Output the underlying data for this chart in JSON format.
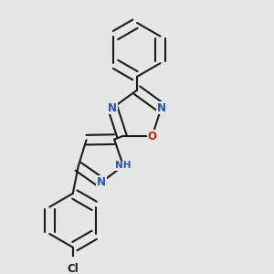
{
  "background_color": "#e6e6e6",
  "bond_color": "#1a1a1a",
  "bond_width": 1.5,
  "atom_colors": {
    "N": "#2255bb",
    "O": "#cc2200",
    "Cl": "#1a1a1a",
    "H": "#557777",
    "C": "#1a1a1a"
  },
  "font_size_atom": 8.5,
  "font_size_small": 7.5,
  "font_size_H": 7.0
}
